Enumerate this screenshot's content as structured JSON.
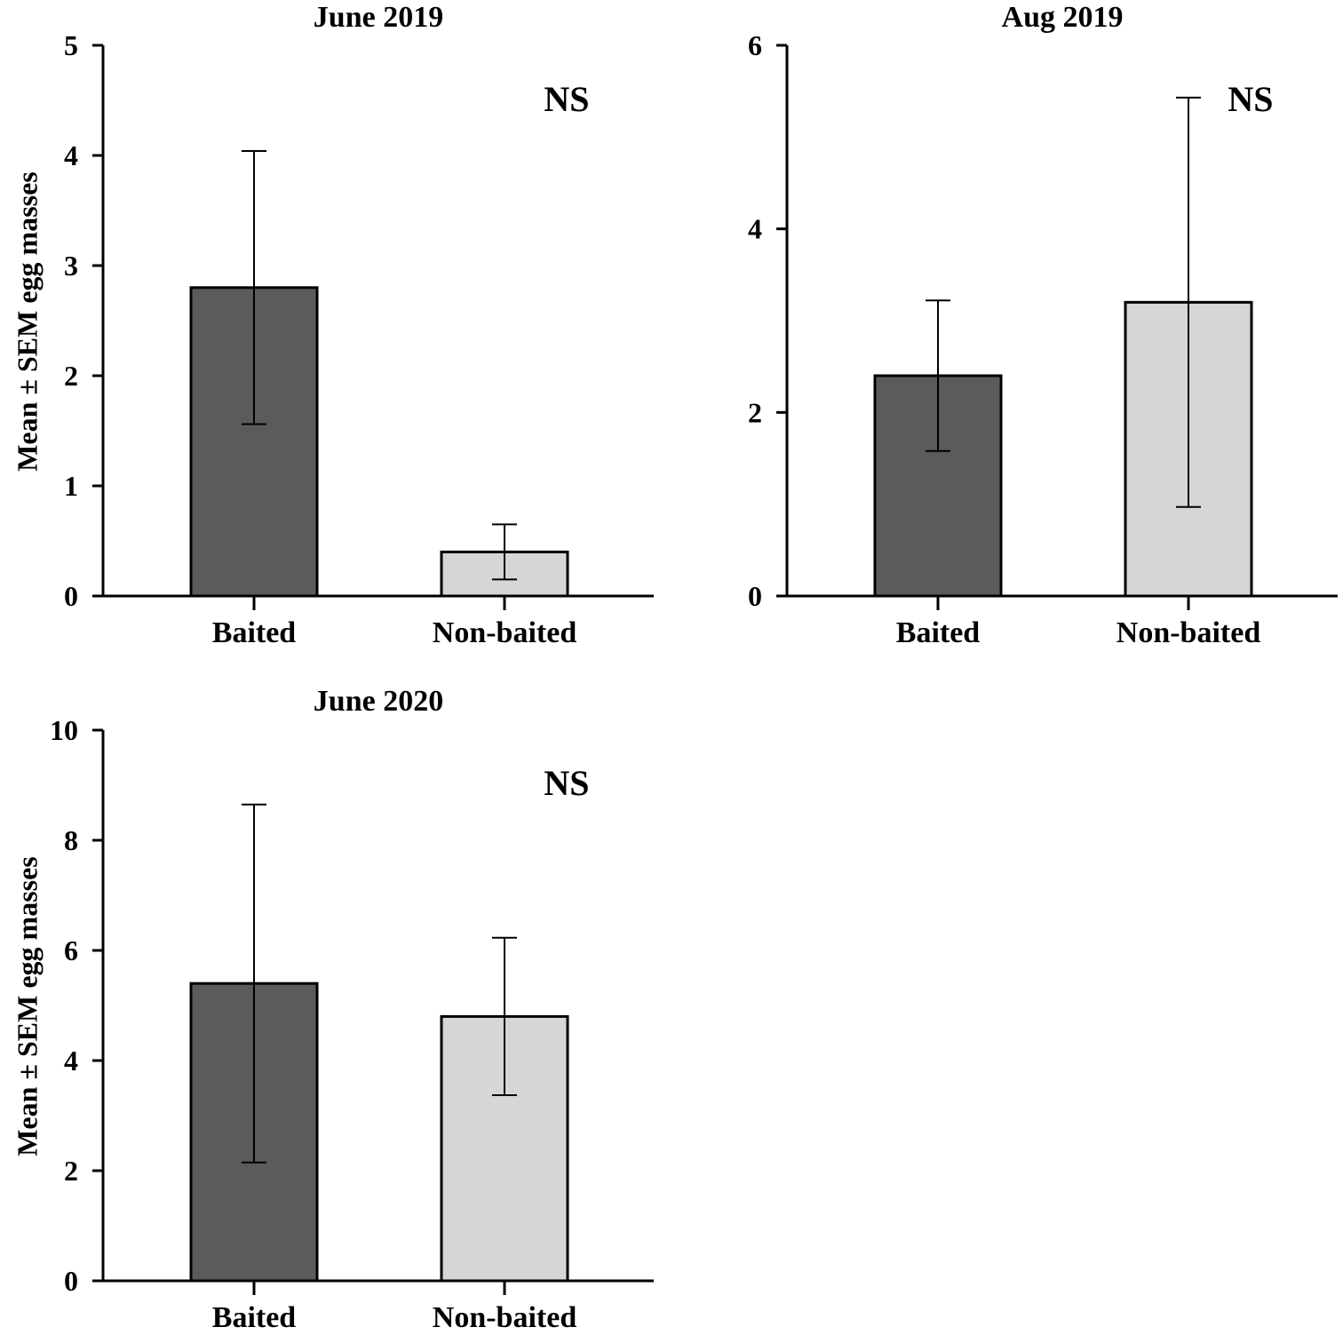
{
  "chart_data": [
    {
      "type": "bar",
      "title": "June 2019",
      "categories": [
        "Baited",
        "Non-baited"
      ],
      "values": [
        2.8,
        0.4
      ],
      "errors": [
        1.24,
        0.25
      ],
      "colors": [
        "#5b5b5b",
        "#d6d6d6"
      ],
      "ylabel": "Mean ± SEM egg masses",
      "ylim": [
        0,
        5
      ],
      "yticks": [
        0,
        1,
        2,
        3,
        4,
        5
      ],
      "annotation": "NS"
    },
    {
      "type": "bar",
      "title": "Aug 2019",
      "categories": [
        "Baited",
        "Non-baited"
      ],
      "values": [
        2.4,
        3.2
      ],
      "errors": [
        0.82,
        2.23
      ],
      "colors": [
        "#5b5b5b",
        "#d6d6d6"
      ],
      "ylabel": "",
      "ylim": [
        0,
        6
      ],
      "yticks": [
        0,
        2,
        4,
        6
      ],
      "annotation": "NS"
    },
    {
      "type": "bar",
      "title": "June 2020",
      "categories": [
        "Baited",
        "Non-baited"
      ],
      "values": [
        5.4,
        4.8
      ],
      "errors": [
        3.25,
        1.43
      ],
      "colors": [
        "#5b5b5b",
        "#d6d6d6"
      ],
      "ylabel": "Mean ± SEM egg masses",
      "ylim": [
        0,
        10
      ],
      "yticks": [
        0,
        2,
        4,
        6,
        8,
        10
      ],
      "annotation": "NS"
    }
  ]
}
